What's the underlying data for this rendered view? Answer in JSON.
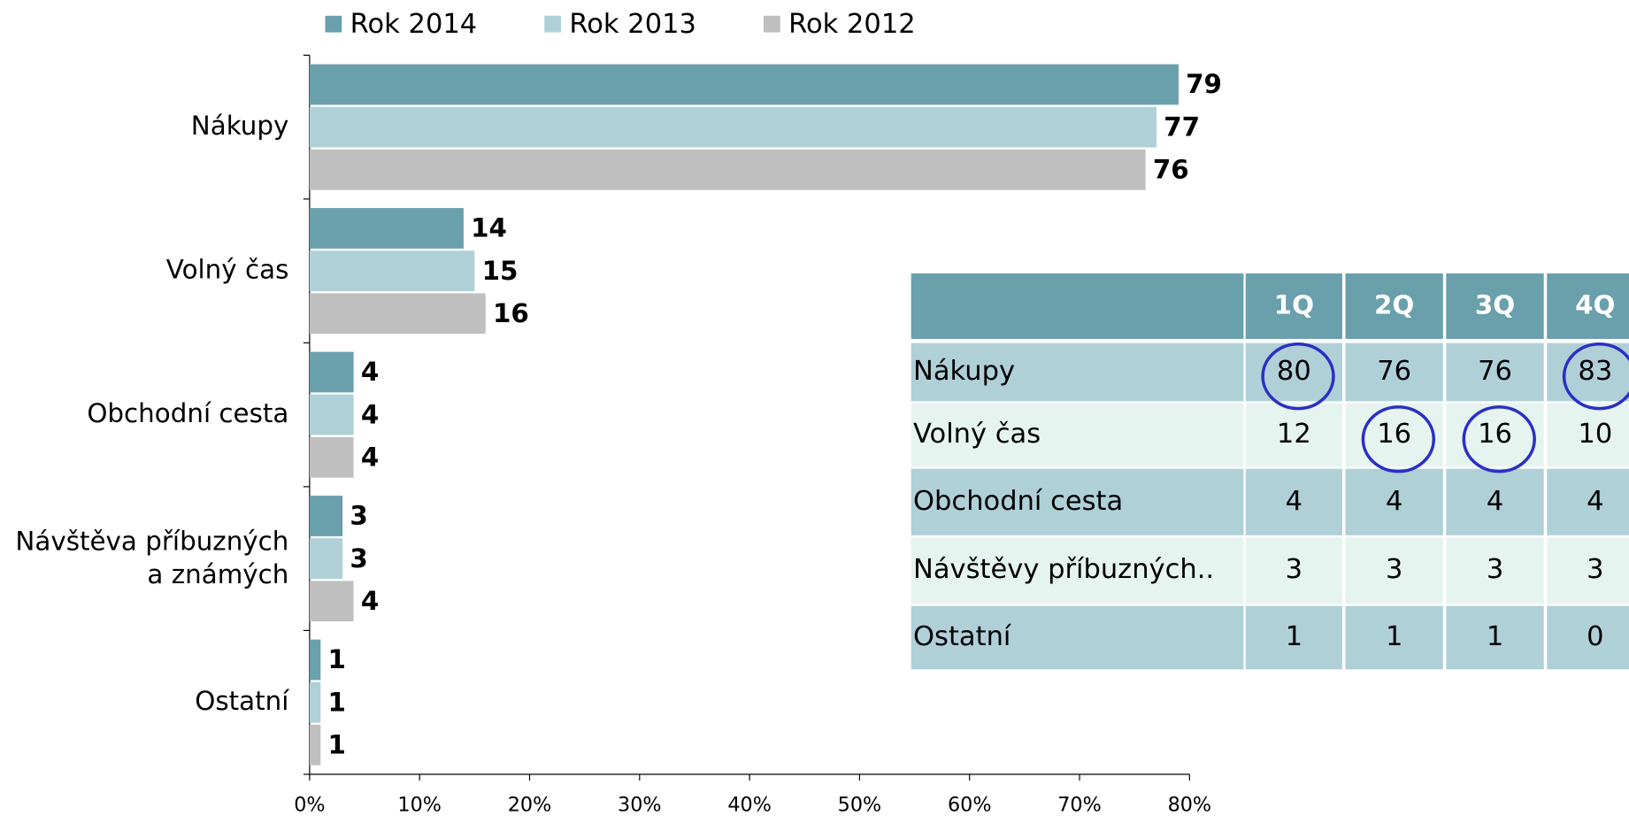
{
  "chart_data": {
    "type": "bar",
    "orientation": "horizontal",
    "categories": [
      "Nákupy",
      "Volný čas",
      "Obchodní cesta",
      "Návštěva příbuzných\na známých",
      "Ostatní"
    ],
    "series": [
      {
        "name": "Rok 2014",
        "color": "#6a9fac",
        "values": [
          79,
          14,
          4,
          3,
          1
        ]
      },
      {
        "name": "Rok 2013",
        "color": "#b0d0d8",
        "values": [
          77,
          15,
          4,
          3,
          1
        ]
      },
      {
        "name": "Rok 2012",
        "color": "#bfbfbf",
        "values": [
          76,
          16,
          4,
          4,
          1
        ]
      }
    ],
    "xlim": [
      0,
      80
    ],
    "xticks": [
      {
        "value": 0,
        "label": "0%"
      },
      {
        "value": 10,
        "label": "10%"
      },
      {
        "value": 20,
        "label": "20%"
      },
      {
        "value": 30,
        "label": "30%"
      },
      {
        "value": 40,
        "label": "40%"
      },
      {
        "value": 50,
        "label": "50%"
      },
      {
        "value": 60,
        "label": "60%"
      },
      {
        "value": 70,
        "label": "70%"
      },
      {
        "value": 80,
        "label": "80%"
      }
    ],
    "legend": "top"
  },
  "table": {
    "columns": [
      "1Q",
      "2Q",
      "3Q",
      "4Q"
    ],
    "rows": [
      [
        "Nákupy",
        80,
        76,
        76,
        83
      ],
      [
        "Volný čas",
        12,
        16,
        16,
        10
      ],
      [
        "Obchodní cesta",
        4,
        4,
        4,
        4
      ],
      [
        "Návštěvy příbuzných..",
        3,
        3,
        3,
        3
      ],
      [
        "Ostatní",
        1,
        1,
        1,
        0
      ]
    ],
    "circled": [
      [
        0,
        1
      ],
      [
        0,
        4
      ],
      [
        1,
        2
      ],
      [
        1,
        3
      ]
    ]
  }
}
